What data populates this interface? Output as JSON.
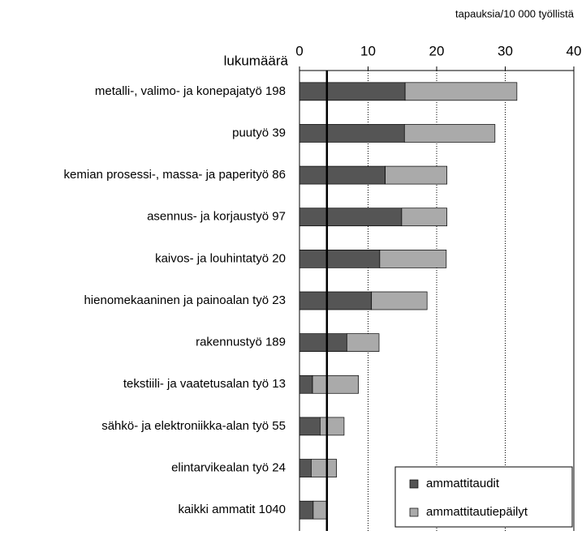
{
  "chart_data": {
    "type": "bar",
    "orientation": "horizontal",
    "stacked": true,
    "x_label": "tapauksia/10 000 työllistä",
    "category_header": "lukumäärä",
    "categories": [
      "metalli-, valimo- ja konepajatyö 198",
      "puutyö 39",
      "kemian prosessi-, massa- ja paperityö 86",
      "asennus- ja korjaustyö 97",
      "kaivos- ja louhintatyö 20",
      "hienomekaaninen ja painoalan työ 23",
      "rakennustyö 189",
      "tekstiili- ja vaatetusalan työ 13",
      "sähkö- ja elektroniikka-alan työ 55",
      "elintarvikealan työ 24",
      "kaikki ammatit 1040"
    ],
    "series": [
      {
        "name": "ammattitaudit",
        "color": "#555555",
        "values": [
          15.4,
          15.3,
          12.5,
          14.9,
          11.7,
          10.5,
          6.9,
          1.9,
          3.0,
          1.7,
          2.0
        ]
      },
      {
        "name": "ammattitautiepäilyt",
        "color": "#aaaaaa",
        "values": [
          16.3,
          13.2,
          9.0,
          6.6,
          9.7,
          8.1,
          4.7,
          6.7,
          3.5,
          3.7,
          2.0
        ]
      }
    ],
    "xlim": [
      0,
      40
    ],
    "xticks": [
      0,
      10,
      20,
      30,
      40
    ],
    "grid": true,
    "reference_line": 4.0,
    "legend_position": "lower right"
  }
}
